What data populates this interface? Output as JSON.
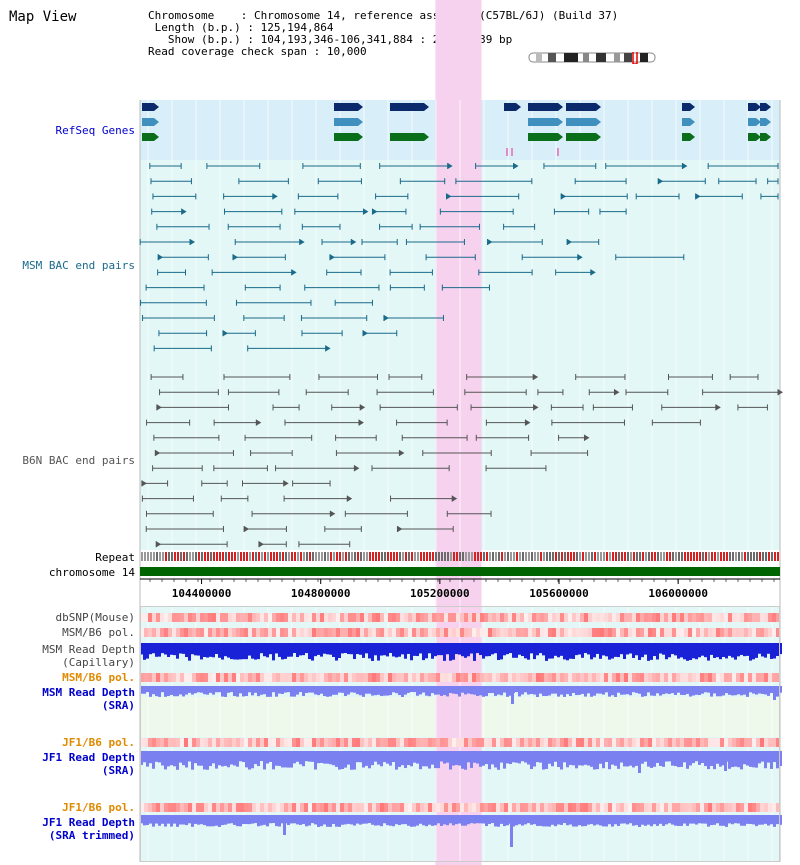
{
  "page": {
    "title": "Map View"
  },
  "info": {
    "chromosome_key": "Chromosome",
    "chromosome_val": "Chromosome 14, reference assembly (C57BL/6J) (Build 37)",
    "length_key": "Length (b.p.)",
    "length_val": "125,194,864",
    "show_key": "Show (b.p.)",
    "show_val": "104,193,346-106,341,884 : 2,148,539 bp",
    "coverage_key": "Read coverage check span",
    "coverage_val": "10,000"
  },
  "tracks": {
    "refseq": {
      "label": "RefSeq Genes",
      "color": "#0000cc"
    },
    "msm_bac": {
      "label": "MSM BAC end pairs",
      "color": "#1a6a8a"
    },
    "b6n_bac": {
      "label": "B6N BAC end pairs",
      "color": "#555555"
    },
    "repeat": {
      "label": "Repeat"
    },
    "chrom": {
      "label": "chromosome 14",
      "color": "#006400"
    },
    "dbsnp": {
      "label": "dbSNP(Mouse)"
    },
    "msm_b6_pol": {
      "label": "MSM/B6 pol."
    },
    "msm_depth_cap": {
      "line1": "MSM Read Depth",
      "line2": "(Capillary)"
    },
    "msm_b6_pol_2": {
      "label": "MSM/B6 pol.",
      "color": "#e08a00"
    },
    "msm_depth_sra": {
      "line1": "MSM Read Depth",
      "line2": "(SRA)",
      "color": "#0000cc"
    },
    "jf1_b6_pol": {
      "label": "JF1/B6 pol.",
      "color": "#e08a00"
    },
    "jf1_depth_sra": {
      "line1": "JF1 Read Depth",
      "line2": "(SRA)",
      "color": "#0000cc"
    },
    "jf1_b6_pol_2": {
      "label": "JF1/B6 pol.",
      "color": "#e08a00"
    },
    "jf1_depth_trim": {
      "line1": "JF1 Read Depth",
      "line2": "(SRA trimmed)",
      "color": "#0000cc"
    }
  },
  "axis": {
    "ticks": [
      {
        "value": 104400000,
        "label": "104400000"
      },
      {
        "value": 104800000,
        "label": "104800000"
      },
      {
        "value": 105200000,
        "label": "105200000"
      },
      {
        "value": 105600000,
        "label": "105600000"
      },
      {
        "value": 106000000,
        "label": "106000000"
      }
    ],
    "range": [
      104193346,
      106341884
    ]
  },
  "highlight": {
    "start": 105185000,
    "end": 105340000,
    "color": "#f6d2ef"
  },
  "colors": {
    "refseq_bg": "#d8effa",
    "track_bg": "#e2f7f6",
    "green_bg": "#f0f8ea",
    "gene_dark": "#0b2a6b",
    "gene_mid": "#3f8fbf",
    "gene_green": "#0a6e1a",
    "depth_dark": "#1a22d8",
    "depth_light": "#7b80f0"
  }
}
